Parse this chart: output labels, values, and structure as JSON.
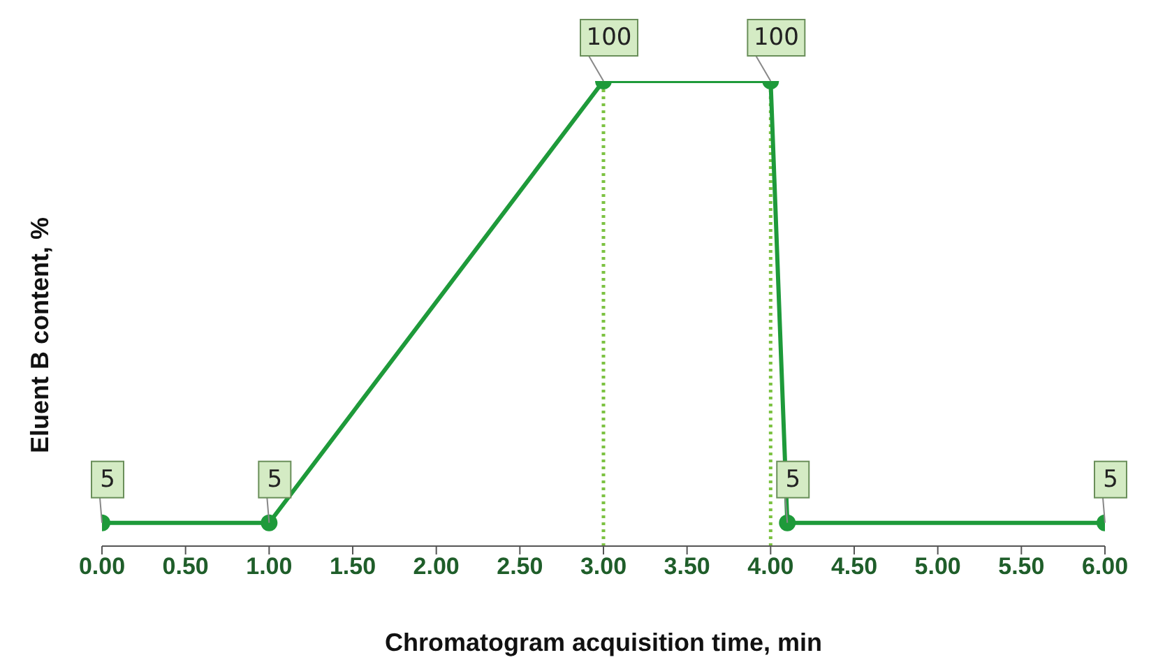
{
  "chart_data": {
    "type": "line",
    "xlabel": "Chromatogram acquisition time, min",
    "ylabel": "Eluent B content, %",
    "x": [
      0,
      1,
      3,
      4,
      4.1,
      6
    ],
    "series": [
      {
        "color": "#1e9a3a",
        "values": [
          5,
          5,
          100,
          100,
          5,
          5
        ]
      }
    ],
    "xlim": [
      0,
      6
    ],
    "xticks": [
      {
        "value": 0,
        "label": "0.00"
      },
      {
        "value": 0.5,
        "label": "0.50"
      },
      {
        "value": 1,
        "label": "1.00"
      },
      {
        "value": 1.5,
        "label": "1.50"
      },
      {
        "value": 2,
        "label": "2.00"
      },
      {
        "value": 2.5,
        "label": "2.50"
      },
      {
        "value": 3,
        "label": "3.00"
      },
      {
        "value": 3.5,
        "label": "3.50"
      },
      {
        "value": 4,
        "label": "4.00"
      },
      {
        "value": 4.5,
        "label": "4.50"
      },
      {
        "value": 5,
        "label": "5.00"
      },
      {
        "value": 5.5,
        "label": "5.50"
      },
      {
        "value": 6,
        "label": "6.00"
      }
    ],
    "ylim": [
      0,
      100
    ],
    "tick_labels": "x",
    "ref_lines": [
      {
        "axis": "x",
        "value": 3,
        "color": "#7cc242",
        "line_style": "dotted"
      },
      {
        "axis": "x",
        "value": 4,
        "color": "#7cc242",
        "line_style": "dotted"
      }
    ],
    "data_labels": true,
    "marker": "circle",
    "line_style": "solid"
  }
}
